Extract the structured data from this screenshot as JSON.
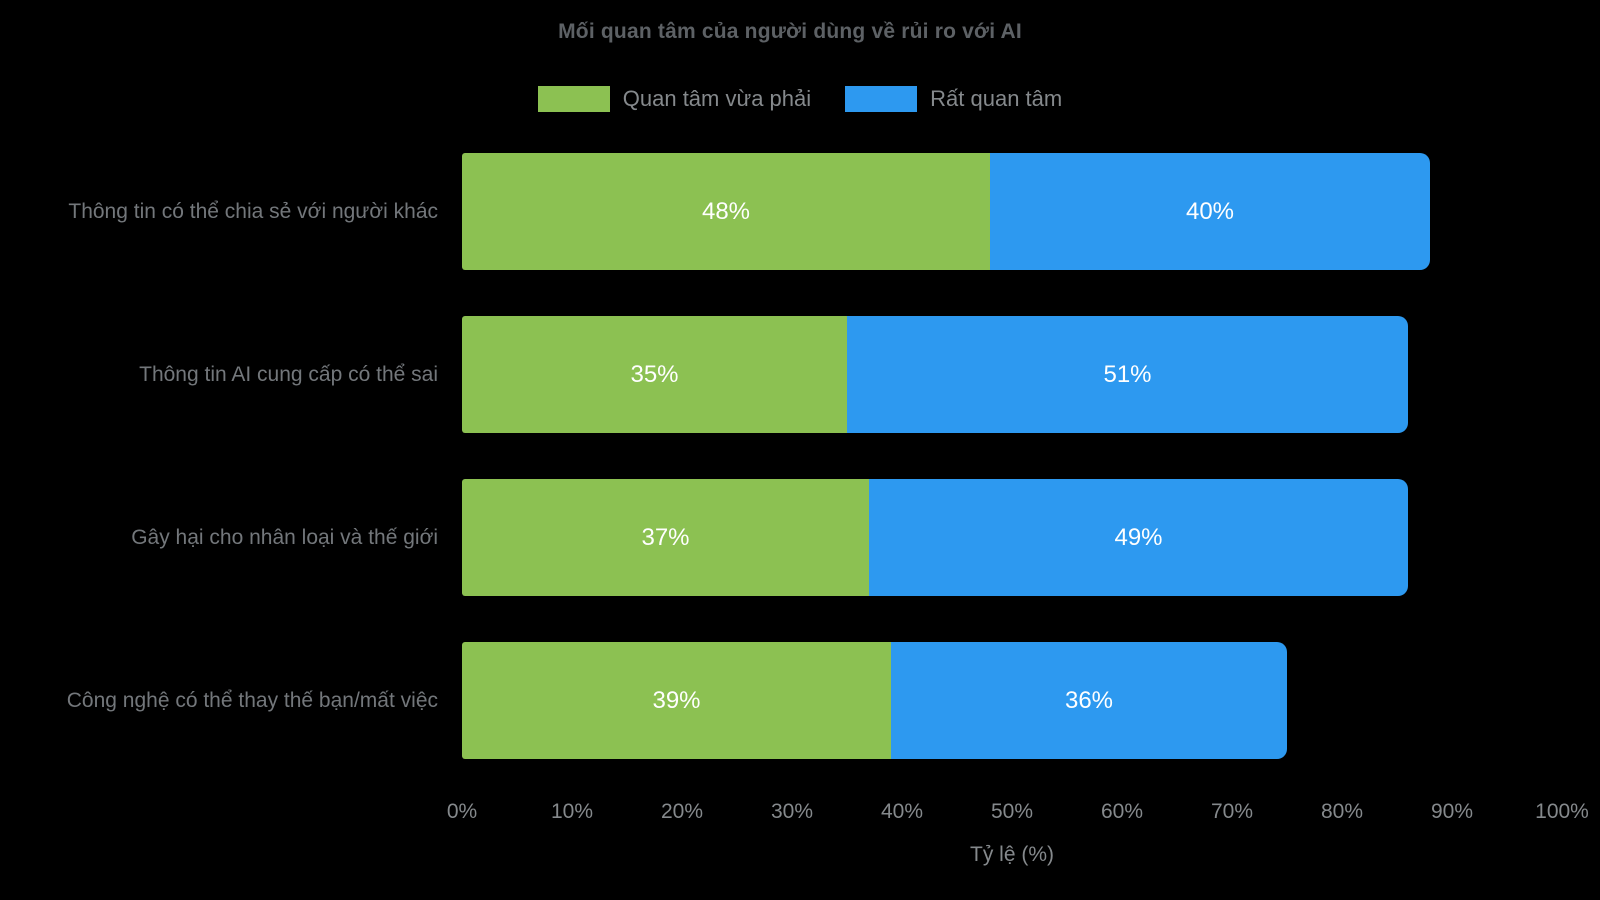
{
  "chart_data": {
    "type": "bar",
    "orientation": "horizontal",
    "stacked": true,
    "title": "Mối quan tâm của người dùng về rủi ro với AI",
    "xlabel": "Tỷ lệ (%)",
    "xlim": [
      0,
      100
    ],
    "grid": false,
    "legend_position": "top-center",
    "background_color": "#000000",
    "x_ticks": [
      "0%",
      "10%",
      "20%",
      "30%",
      "40%",
      "50%",
      "60%",
      "70%",
      "80%",
      "90%",
      "100%"
    ],
    "categories": [
      "Thông tin có thể chia sẻ với người khác",
      "Thông tin AI cung cấp có thể sai",
      "Gây hại cho nhân loại và thế giới",
      "Công nghệ có thể thay thế bạn/mất việc"
    ],
    "series": [
      {
        "name": "Quan tâm vừa phải",
        "color": "#8cc152",
        "values": [
          48,
          35,
          37,
          39
        ],
        "labels": [
          "48%",
          "35%",
          "37%",
          "39%"
        ]
      },
      {
        "name": "Rất quan tâm",
        "color": "#2d99f0",
        "values": [
          40,
          51,
          49,
          36
        ],
        "labels": [
          "40%",
          "51%",
          "49%",
          "36%"
        ]
      }
    ]
  }
}
